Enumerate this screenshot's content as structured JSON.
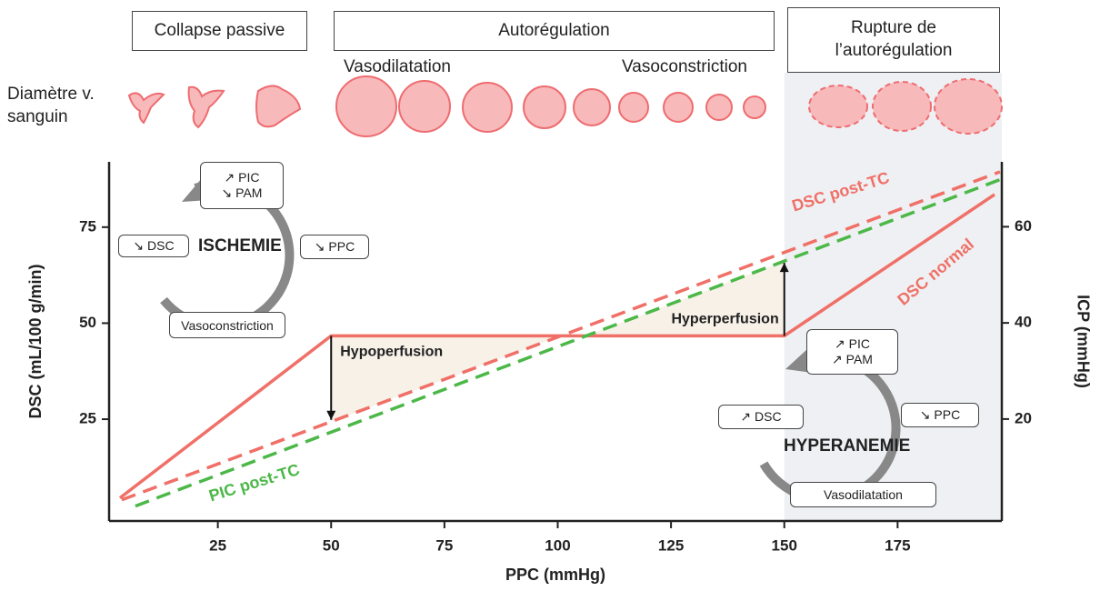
{
  "chart_data": {
    "type": "line",
    "xlabel": "PPC (mmHg)",
    "ylabel": "DSC (mL/100 g/min)",
    "y2label": "ICP (mmHg)",
    "xlim": [
      1,
      198
    ],
    "ylim": [
      -1.5,
      92
    ],
    "y2lim": [
      -1.2,
      73.5
    ],
    "xticks": [
      25,
      50,
      75,
      100,
      125,
      150,
      175
    ],
    "yticks": [
      25,
      50,
      75
    ],
    "y2ticks": [
      20,
      40,
      60
    ],
    "shaded_xlim": [
      150,
      198
    ],
    "series": [
      {
        "name": "DSC normal",
        "color": "#f07068",
        "style": "solid",
        "x": [
          3.4,
          50,
          150,
          196.4
        ],
        "values": [
          4.5,
          46.7,
          46.7,
          83.5
        ]
      },
      {
        "name": "DSC post-TC",
        "color": "#f07068",
        "style": "dashed",
        "x": [
          3.8,
          197.6
        ],
        "values": [
          4,
          89.4
        ]
      },
      {
        "name": "PIC post-TC",
        "color": "#4cb848",
        "style": "dashed",
        "axis": "y2",
        "x": [
          6.8,
          197.6
        ],
        "values": [
          1.9,
          69.8
        ]
      }
    ],
    "phases": [
      "Collapse passive",
      "Autorégulation",
      "Rupture de l’autorégulation"
    ],
    "phase_notes": [
      "Vasodilatation",
      "Vasoconstriction"
    ],
    "row_label": "Diamètre v. sanguin",
    "annotations": [
      "Hypoperfusion",
      "Hyperperfusion"
    ],
    "cycles": [
      {
        "title": "ISCHEMIE",
        "top": [
          "↗ PIC",
          "↘ PAM"
        ],
        "left": "↘ DSC",
        "right": "↘ PPC",
        "bottom": "Vasoconstriction"
      },
      {
        "title": "HYPERANEMIE",
        "top": [
          "↗ PIC",
          "↗ PAM"
        ],
        "left": "↗ DSC",
        "right": "↘ PPC",
        "bottom": "Vasodilatation"
      }
    ]
  }
}
